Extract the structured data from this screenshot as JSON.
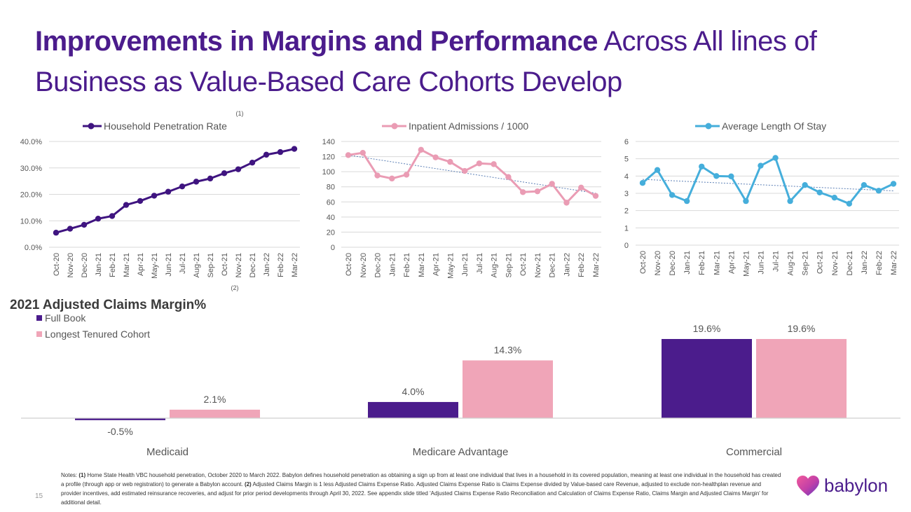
{
  "title": {
    "bold": "Improvements in Margins and Performance",
    "light_1": " Across All lines of",
    "light_2": "Business as Value-Based Care Cohorts Develop"
  },
  "colors": {
    "brand_purple": "#4b1c8c",
    "bar_purple": "#4b1c8c",
    "bar_pink": "#f0a5b8",
    "line_purple": "#3f1480",
    "line_pink": "#ea9cb4",
    "line_blue": "#45aedb",
    "grid": "#d9d9d9"
  },
  "chart_data": [
    {
      "type": "line",
      "legend": "Household Penetration Rate",
      "footnote_marker": "(1)",
      "x": [
        "Oct-20",
        "Nov-20",
        "Dec-20",
        "Jan-21",
        "Feb-21",
        "Mar-21",
        "Apr-21",
        "May-21",
        "Jun-21",
        "Jul-21",
        "Aug-21",
        "Sep-21",
        "Oct-21",
        "Nov-21",
        "Dec-21",
        "Jan-22",
        "Feb-22",
        "Mar-22"
      ],
      "values": [
        5.5,
        7.0,
        8.5,
        10.8,
        11.8,
        16.0,
        17.5,
        19.5,
        21.0,
        23.0,
        24.8,
        26.0,
        28.0,
        29.5,
        32.0,
        35.0,
        36.0,
        37.2
      ],
      "yticks": [
        "0.0%",
        "10.0%",
        "20.0%",
        "30.0%",
        "40.0%"
      ],
      "ylim": [
        0,
        40
      ],
      "grid": true
    },
    {
      "type": "line",
      "legend": "Inpatient Admissions / 1000",
      "trendline": true,
      "x": [
        "Oct-20",
        "Nov-20",
        "Dec-20",
        "Jan-21",
        "Feb-21",
        "Mar-21",
        "Apr-21",
        "May-21",
        "Jun-21",
        "Jul-21",
        "Aug-21",
        "Sep-21",
        "Oct-21",
        "Nov-21",
        "Dec-21",
        "Jan-22",
        "Feb-22",
        "Mar-22"
      ],
      "values": [
        122,
        125,
        95,
        91,
        96,
        129,
        119,
        113,
        101,
        111,
        110,
        93,
        73,
        74,
        84,
        59,
        79,
        68
      ],
      "yticks": [
        "0",
        "20",
        "40",
        "60",
        "80",
        "100",
        "120",
        "140"
      ],
      "ylim": [
        0,
        140
      ],
      "grid": true
    },
    {
      "type": "line",
      "legend": "Average Length Of Stay",
      "trendline": true,
      "x": [
        "Oct-20",
        "Nov-20",
        "Dec-20",
        "Jan-21",
        "Feb-21",
        "Mar-21",
        "Apr-21",
        "May-21",
        "Jun-21",
        "Jul-21",
        "Aug-21",
        "Sep-21",
        "Oct-21",
        "Nov-21",
        "Dec-21",
        "Jan-22",
        "Feb-22",
        "Mar-22"
      ],
      "values": [
        3.6,
        4.35,
        2.9,
        2.55,
        4.55,
        4.0,
        3.98,
        2.55,
        4.6,
        5.05,
        2.55,
        3.48,
        3.05,
        2.75,
        2.4,
        3.48,
        3.15,
        3.55
      ],
      "yticks": [
        "0",
        "1",
        "2",
        "3",
        "4",
        "5",
        "6"
      ],
      "ylim": [
        0,
        6
      ],
      "grid": true
    },
    {
      "type": "bar",
      "title": "2021 Adjusted Claims Margin%",
      "footnote_marker": "(2)",
      "categories": [
        "Medicaid",
        "Medicare Advantage",
        "Commercial"
      ],
      "series": [
        {
          "name": "Full Book",
          "values": [
            -0.5,
            4.0,
            19.6
          ],
          "labels": [
            "-0.5%",
            "4.0%",
            "19.6%"
          ]
        },
        {
          "name": "Longest Tenured Cohort",
          "values": [
            2.1,
            14.3,
            19.6
          ],
          "labels": [
            "2.1%",
            "14.3%",
            "19.6%"
          ]
        }
      ]
    }
  ],
  "notes": {
    "label": "Notes: ",
    "m1": "(1)",
    "t1": " Home State Health VBC household penetration, October 2020 to March 2022. Babylon defines household penetration as obtaining a sign up from at least one individual that lives in a household in its covered population, meaning at least one individual in the household has created a profile (through app or web registration) to generate a Babylon account. ",
    "m2": "(2)",
    "t2": " Adjusted Claims Margin is 1 less Adjusted Claims Expense Ratio.  Adjusted Claims Expense Ratio is Claims Expense divided by Value-based care Revenue, adjusted to exclude non-healthplan revenue and provider incentives, add estimated reinsurance recoveries, and adjust for prior period developments through April 30, 2022. See appendix slide titled 'Adjusted Claims Expense Ratio Reconciliation and Calculation of Claims Expense Ratio, Claims Margin and Adjusted Claims Margin' for additional detail."
  },
  "page_number": "15",
  "logo": {
    "text": "babylon",
    "icon": "heart-logo-icon"
  }
}
